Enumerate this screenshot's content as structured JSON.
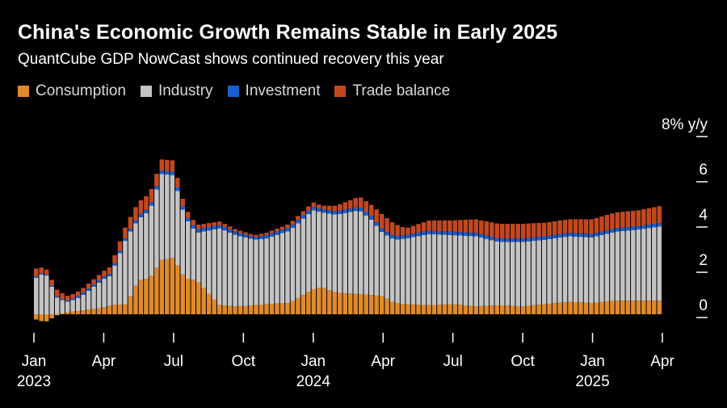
{
  "title": "China's Economic Growth Remains Stable in Early 2025",
  "subtitle": "QuantCube GDP NowCast shows continued recovery this year",
  "colors": {
    "background": "#000000",
    "consumption": "#e08a2c",
    "industry": "#c4c4c4",
    "investment": "#1a5fd0",
    "trade_balance": "#c2481f"
  },
  "legend": [
    {
      "label": "Consumption",
      "color": "#e08a2c"
    },
    {
      "label": "Industry",
      "color": "#c4c4c4"
    },
    {
      "label": "Investment",
      "color": "#1a5fd0"
    },
    {
      "label": "Trade balance",
      "color": "#c2481f"
    }
  ],
  "chart_data": {
    "type": "bar",
    "stacked": true,
    "unit_label": "8% y/y",
    "ylim": [
      -1,
      8
    ],
    "y_ticks": [
      {
        "value": 0,
        "label": "0"
      },
      {
        "value": 2,
        "label": "2"
      },
      {
        "value": 4,
        "label": "4"
      },
      {
        "value": 6,
        "label": "6"
      },
      {
        "value": 8,
        "label": "8% y/y"
      }
    ],
    "x_ticks": [
      {
        "month": 0,
        "label": "Jan",
        "year": "2023"
      },
      {
        "month": 3,
        "label": "Apr",
        "year": ""
      },
      {
        "month": 6,
        "label": "Jul",
        "year": ""
      },
      {
        "month": 9,
        "label": "Oct",
        "year": ""
      },
      {
        "month": 12,
        "label": "Jan",
        "year": "2024"
      },
      {
        "month": 15,
        "label": "Apr",
        "year": ""
      },
      {
        "month": 18,
        "label": "Jul",
        "year": ""
      },
      {
        "month": 21,
        "label": "Oct",
        "year": ""
      },
      {
        "month": 24,
        "label": "Jan",
        "year": "2025"
      },
      {
        "month": 27,
        "label": "Apr",
        "year": ""
      }
    ],
    "x_range": [
      0,
      27
    ],
    "series": [
      {
        "name": "Consumption",
        "x": [
          0,
          0.5,
          1,
          1.5,
          2,
          3,
          3.3,
          4,
          4.5,
          5,
          5.5,
          6,
          6.5,
          7,
          8,
          8.7,
          9.5,
          10,
          11,
          12,
          12.4,
          13,
          14,
          14.5,
          15,
          15.5,
          16,
          17,
          18,
          19,
          20,
          21,
          22,
          23,
          24,
          25,
          26,
          27
        ],
        "values": [
          -0.2,
          -0.35,
          -0.05,
          0.1,
          0.15,
          0.3,
          0.4,
          0.45,
          1.5,
          1.6,
          2.4,
          2.5,
          1.6,
          1.5,
          0.4,
          0.35,
          0.4,
          0.45,
          0.5,
          1.1,
          1.2,
          0.95,
          0.9,
          0.85,
          0.8,
          0.5,
          0.45,
          0.4,
          0.45,
          0.35,
          0.4,
          0.35,
          0.45,
          0.55,
          0.5,
          0.6,
          0.6,
          0.6
        ]
      },
      {
        "name": "Industry",
        "x": [
          0,
          0.5,
          1,
          1.5,
          2,
          3,
          3.3,
          4,
          4.5,
          5,
          5.5,
          6,
          6.5,
          7,
          8,
          8.7,
          9.5,
          10,
          11,
          12,
          12.4,
          13,
          14,
          14.5,
          15,
          15.5,
          16,
          17,
          18,
          19,
          20,
          21,
          22,
          23,
          24,
          25,
          26,
          27
        ],
        "values": [
          1.55,
          1.85,
          0.75,
          0.45,
          0.6,
          1.25,
          1.3,
          2.95,
          2.7,
          3.0,
          3.8,
          3.65,
          2.7,
          2.1,
          3.4,
          3.15,
          2.9,
          2.9,
          3.2,
          3.5,
          3.3,
          3.45,
          3.7,
          3.35,
          2.8,
          2.8,
          2.9,
          3.15,
          3.05,
          3.1,
          2.8,
          2.85,
          2.85,
          2.9,
          2.9,
          3.05,
          3.15,
          3.3
        ]
      },
      {
        "name": "Investment",
        "x": [
          0,
          0.5,
          1,
          1.5,
          2,
          3,
          3.3,
          4,
          4.5,
          5,
          5.5,
          6,
          6.5,
          7,
          8,
          8.7,
          9.5,
          10,
          11,
          12,
          12.4,
          13,
          14,
          14.5,
          15,
          15.5,
          16,
          17,
          18,
          19,
          20,
          21,
          22,
          23,
          24,
          25,
          26,
          27
        ],
        "values": [
          0.05,
          0.05,
          0.05,
          0.05,
          0.1,
          0.1,
          0.1,
          0.1,
          0.15,
          0.15,
          0.15,
          0.15,
          0.15,
          0.15,
          0.15,
          0.15,
          0.1,
          0.15,
          0.15,
          0.15,
          0.15,
          0.15,
          0.15,
          0.15,
          0.15,
          0.15,
          0.15,
          0.15,
          0.15,
          0.15,
          0.15,
          0.15,
          0.15,
          0.15,
          0.15,
          0.15,
          0.15,
          0.15
        ]
      },
      {
        "name": "Trade balance",
        "x": [
          0,
          0.5,
          1,
          1.5,
          2,
          3,
          3.3,
          4,
          4.5,
          5,
          5.5,
          6,
          6.5,
          7,
          8,
          8.7,
          9.5,
          10,
          11,
          12,
          12.4,
          13,
          14,
          14.5,
          15,
          15.5,
          16,
          17,
          18,
          19,
          20,
          21,
          22,
          23,
          24,
          25,
          26,
          27
        ],
        "values": [
          0.4,
          0.2,
          0.3,
          0.2,
          0.2,
          0.25,
          0.3,
          0.5,
          0.6,
          0.6,
          0.5,
          0.5,
          0.3,
          0.2,
          0.15,
          0.1,
          0.1,
          0.1,
          0.15,
          0.2,
          0.15,
          0.25,
          0.45,
          0.5,
          0.65,
          0.55,
          0.3,
          0.45,
          0.5,
          0.6,
          0.65,
          0.65,
          0.6,
          0.6,
          0.65,
          0.7,
          0.7,
          0.75
        ]
      }
    ]
  }
}
